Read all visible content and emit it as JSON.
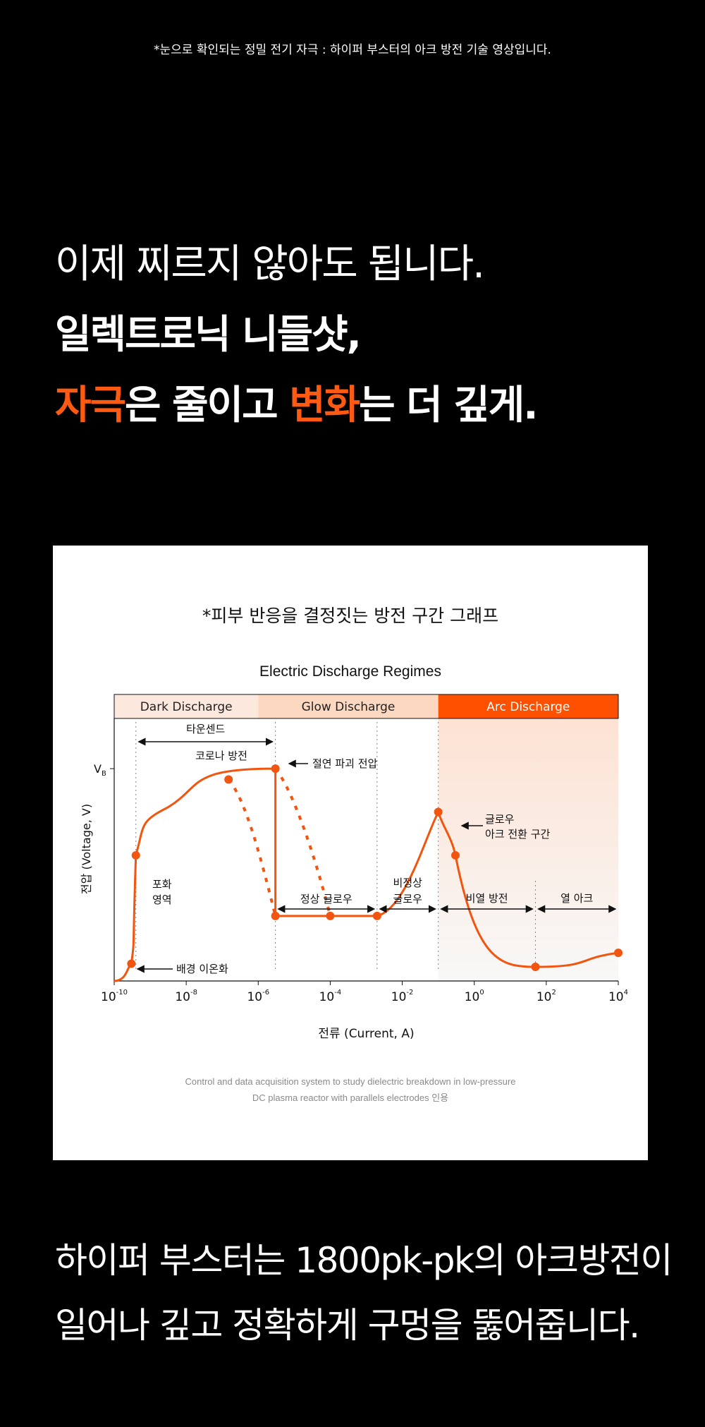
{
  "top_caption": "*눈으로 확인되는 정밀 전기 자극 : 하이퍼 부스터의 아크 방전 기술 영상입니다.",
  "headline": {
    "line1": "이제 찌르지 않아도 됩니다.",
    "line2": "일렉트로닉 니들샷,",
    "line3_accent1": "자극",
    "line3_mid": "은 줄이고 ",
    "line3_accent2": "변화",
    "line3_end": "는 더 깊게."
  },
  "card_title": "*피부 반응을 결정짓는 방전 구간 그래프",
  "source_line1": "Control and data acquisition system to study dielectric breakdown in low-pressure",
  "source_line2": "DC plasma reactor with parallels electrodes 인용",
  "bottom_text": {
    "line1": "하이퍼 부스터는 1800pk-pk의 아크방전이",
    "line2": "일어나 깊고 정확하게 구멍을 뚫어줍니다."
  },
  "colors": {
    "accent": "#ff5a12",
    "curve": "#f2550f",
    "dark_band": "#fde8dd",
    "glow_band": "#fcd8c0",
    "arc_band": "#ff5000"
  },
  "chart_data": {
    "type": "line",
    "title": "Electric Discharge Regimes",
    "xlabel": "전류 (Current, A)",
    "ylabel": "전압 (Voltage, V)",
    "x_scale": "log",
    "xlim": [
      1e-10,
      10000.0
    ],
    "x_ticks": [
      "10^-10",
      "10^-8",
      "10^-6",
      "10^-4",
      "10^-2",
      "10^0",
      "10^2",
      "10^4"
    ],
    "y_tick_label": "V_B",
    "regions": [
      {
        "name": "Dark Discharge",
        "x_range": [
          1e-10,
          1e-06
        ]
      },
      {
        "name": "Glow Discharge",
        "x_range": [
          1e-06,
          0.1
        ]
      },
      {
        "name": "Arc Discharge",
        "x_range": [
          0.1,
          10000.0
        ]
      }
    ],
    "series": [
      {
        "style": "solid",
        "points": [
          {
            "x": 1e-10,
            "y": 0.0
          },
          {
            "x": 3e-10,
            "y": 0.08
          },
          {
            "x": 4e-10,
            "y": 0.58
          },
          {
            "x": 3e-09,
            "y": 0.8
          },
          {
            "x": 1.5e-07,
            "y": 0.93
          },
          {
            "x": 3e-06,
            "y": 0.98
          },
          {
            "x": 3e-06,
            "y": 0.3
          },
          {
            "x": 0.002,
            "y": 0.3
          },
          {
            "x": 0.1,
            "y": 0.78
          },
          {
            "x": 0.3,
            "y": 0.58
          },
          {
            "x": 50,
            "y": 0.065
          },
          {
            "x": 10000.0,
            "y": 0.13
          }
        ]
      },
      {
        "style": "dashed",
        "points": [
          {
            "x": 1.5e-07,
            "y": 0.93
          },
          {
            "x": 3e-06,
            "y": 0.3
          }
        ]
      },
      {
        "style": "dashed",
        "points": [
          {
            "x": 3e-06,
            "y": 0.98
          },
          {
            "x": 0.0001,
            "y": 0.3
          }
        ]
      }
    ],
    "markers": [
      {
        "x": 3e-10,
        "y": 0.08
      },
      {
        "x": 4e-10,
        "y": 0.58
      },
      {
        "x": 1.5e-07,
        "y": 0.93
      },
      {
        "x": 3e-06,
        "y": 0.98
      },
      {
        "x": 3e-06,
        "y": 0.3
      },
      {
        "x": 0.0001,
        "y": 0.3
      },
      {
        "x": 0.002,
        "y": 0.3
      },
      {
        "x": 0.1,
        "y": 0.78
      },
      {
        "x": 0.3,
        "y": 0.58
      },
      {
        "x": 50,
        "y": 0.065
      },
      {
        "x": 10000.0,
        "y": 0.13
      }
    ],
    "annotations": {
      "townsend": "타운센드",
      "corona": "코로나 방전",
      "breakdown": "절연 파괴 전압",
      "saturation_1": "포화",
      "saturation_2": "영역",
      "background_ionization": "배경 이온화",
      "normal_glow": "정상 글로우",
      "abnormal_glow_1": "비정상",
      "abnormal_glow_2": "글로우",
      "glow_arc_1": "글로우",
      "glow_arc_2": "아크 전환 구간",
      "nonthermal_arc": "비열 방전",
      "thermal_arc": "열 아크"
    }
  }
}
